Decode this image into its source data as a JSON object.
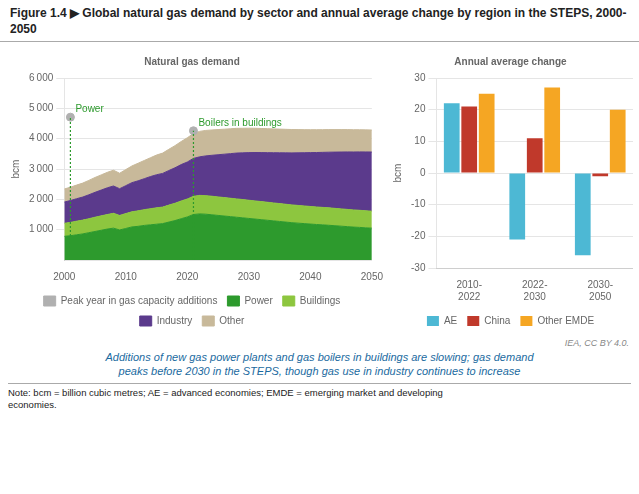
{
  "title": "Figure 1.4 ▶ Global natural gas demand by sector and annual average change by region in the STEPS, 2000-2050",
  "subtitle": "Additions of new gas power plants and gas boilers in buildings are slowing; gas demand\npeaks before 2030 in the STEPS, though gas use in industry continues to increase",
  "note": "Note: bcm = billion cubic metres; AE = advanced economies; EMDE = emerging market and developing\neconomies.",
  "credit": "IEA, CC BY 4.0.",
  "chart_data": [
    {
      "type": "area",
      "title": "Natural gas demand",
      "y_label": "bcm",
      "stacked": true,
      "x": [
        2000,
        2001,
        2002,
        2003,
        2004,
        2005,
        2006,
        2007,
        2008,
        2009,
        2010,
        2011,
        2012,
        2013,
        2014,
        2015,
        2016,
        2017,
        2018,
        2019,
        2020,
        2021,
        2022,
        2023,
        2024,
        2025,
        2026,
        2027,
        2028,
        2029,
        2030,
        2031,
        2032,
        2033,
        2034,
        2035,
        2036,
        2037,
        2038,
        2039,
        2040,
        2041,
        2042,
        2043,
        2044,
        2045,
        2046,
        2047,
        2048,
        2049,
        2050
      ],
      "series": [
        {
          "name": "Power",
          "color": "#2d9a2d",
          "values": [
            780,
            800,
            830,
            860,
            900,
            940,
            980,
            1020,
            1050,
            990,
            1040,
            1090,
            1110,
            1140,
            1160,
            1180,
            1200,
            1250,
            1300,
            1360,
            1420,
            1500,
            1520,
            1510,
            1490,
            1470,
            1450,
            1430,
            1410,
            1390,
            1370,
            1350,
            1330,
            1310,
            1290,
            1270,
            1250,
            1230,
            1215,
            1200,
            1185,
            1170,
            1158,
            1145,
            1130,
            1115,
            1100,
            1085,
            1075,
            1060,
            1050
          ]
        },
        {
          "name": "Buildings",
          "color": "#8dc63f",
          "values": [
            430,
            440,
            450,
            455,
            460,
            470,
            475,
            480,
            490,
            480,
            490,
            500,
            510,
            520,
            530,
            540,
            545,
            560,
            570,
            585,
            590,
            600,
            610,
            612,
            612,
            610,
            608,
            606,
            605,
            603,
            600,
            598,
            596,
            594,
            592,
            590,
            588,
            586,
            584,
            582,
            580,
            578,
            576,
            574,
            572,
            570,
            568,
            566,
            564,
            562,
            560
          ]
        },
        {
          "name": "Industry",
          "color": "#5b3a8c",
          "values": [
            700,
            720,
            740,
            760,
            790,
            820,
            850,
            880,
            900,
            880,
            920,
            960,
            990,
            1020,
            1060,
            1090,
            1110,
            1140,
            1170,
            1200,
            1220,
            1250,
            1270,
            1310,
            1350,
            1390,
            1430,
            1470,
            1510,
            1540,
            1570,
            1595,
            1615,
            1635,
            1655,
            1675,
            1695,
            1715,
            1735,
            1755,
            1775,
            1795,
            1815,
            1835,
            1855,
            1875,
            1895,
            1910,
            1925,
            1940,
            1950
          ]
        },
        {
          "name": "Other",
          "color": "#c8b99a",
          "values": [
            430,
            440,
            450,
            460,
            475,
            490,
            500,
            510,
            520,
            510,
            530,
            550,
            580,
            600,
            620,
            650,
            670,
            700,
            730,
            760,
            800,
            820,
            840,
            840,
            835,
            830,
            825,
            820,
            815,
            810,
            805,
            800,
            795,
            790,
            785,
            780,
            775,
            770,
            765,
            760,
            755,
            752,
            748,
            745,
            742,
            739,
            736,
            733,
            730,
            728,
            725
          ]
        },
        {
          "name": "Peak year in gas capacity additions",
          "type": "scatter",
          "marker": "circle",
          "color": "#b0b0b0",
          "x": [
            2001,
            2021
          ],
          "values": [
            4710,
            4260
          ]
        }
      ],
      "annotations": [
        {
          "text": "Power",
          "x": 2001,
          "y": 4710,
          "color": "#2d9a2d"
        },
        {
          "text": "Boilers in buildings",
          "x": 2021,
          "y": 4260,
          "color": "#2d9a2d"
        }
      ],
      "xlim": [
        2000,
        2050
      ],
      "xticks": [
        2000,
        2010,
        2020,
        2030,
        2040,
        2050
      ],
      "ylim": [
        0,
        6000
      ],
      "yticks": [
        {
          "value": 1000,
          "label": "1 000"
        },
        {
          "value": 2000,
          "label": "2 000"
        },
        {
          "value": 3000,
          "label": "3 000"
        },
        {
          "value": 4000,
          "label": "4 000"
        },
        {
          "value": 5000,
          "label": "5 000"
        },
        {
          "value": 6000,
          "label": "6 000"
        }
      ],
      "grid": "y",
      "legend": "bottom"
    },
    {
      "type": "bar",
      "title": "Annual average change",
      "y_label": "bcm",
      "categories": [
        "2010-\n2022",
        "2022-\n2030",
        "2030-\n2050"
      ],
      "series": [
        {
          "name": "AE",
          "color": "#4db8d4",
          "values": [
            22,
            -21,
            -26
          ]
        },
        {
          "name": "China",
          "color": "#c0392b",
          "values": [
            21,
            11,
            -1
          ]
        },
        {
          "name": "Other EMDE",
          "color": "#f5a623",
          "values": [
            25,
            27,
            20
          ]
        }
      ],
      "ylim": [
        -30,
        30
      ],
      "yticks": [
        -30,
        -20,
        -10,
        0,
        10,
        20,
        30
      ],
      "grid": "y",
      "legend": "bottom"
    }
  ]
}
